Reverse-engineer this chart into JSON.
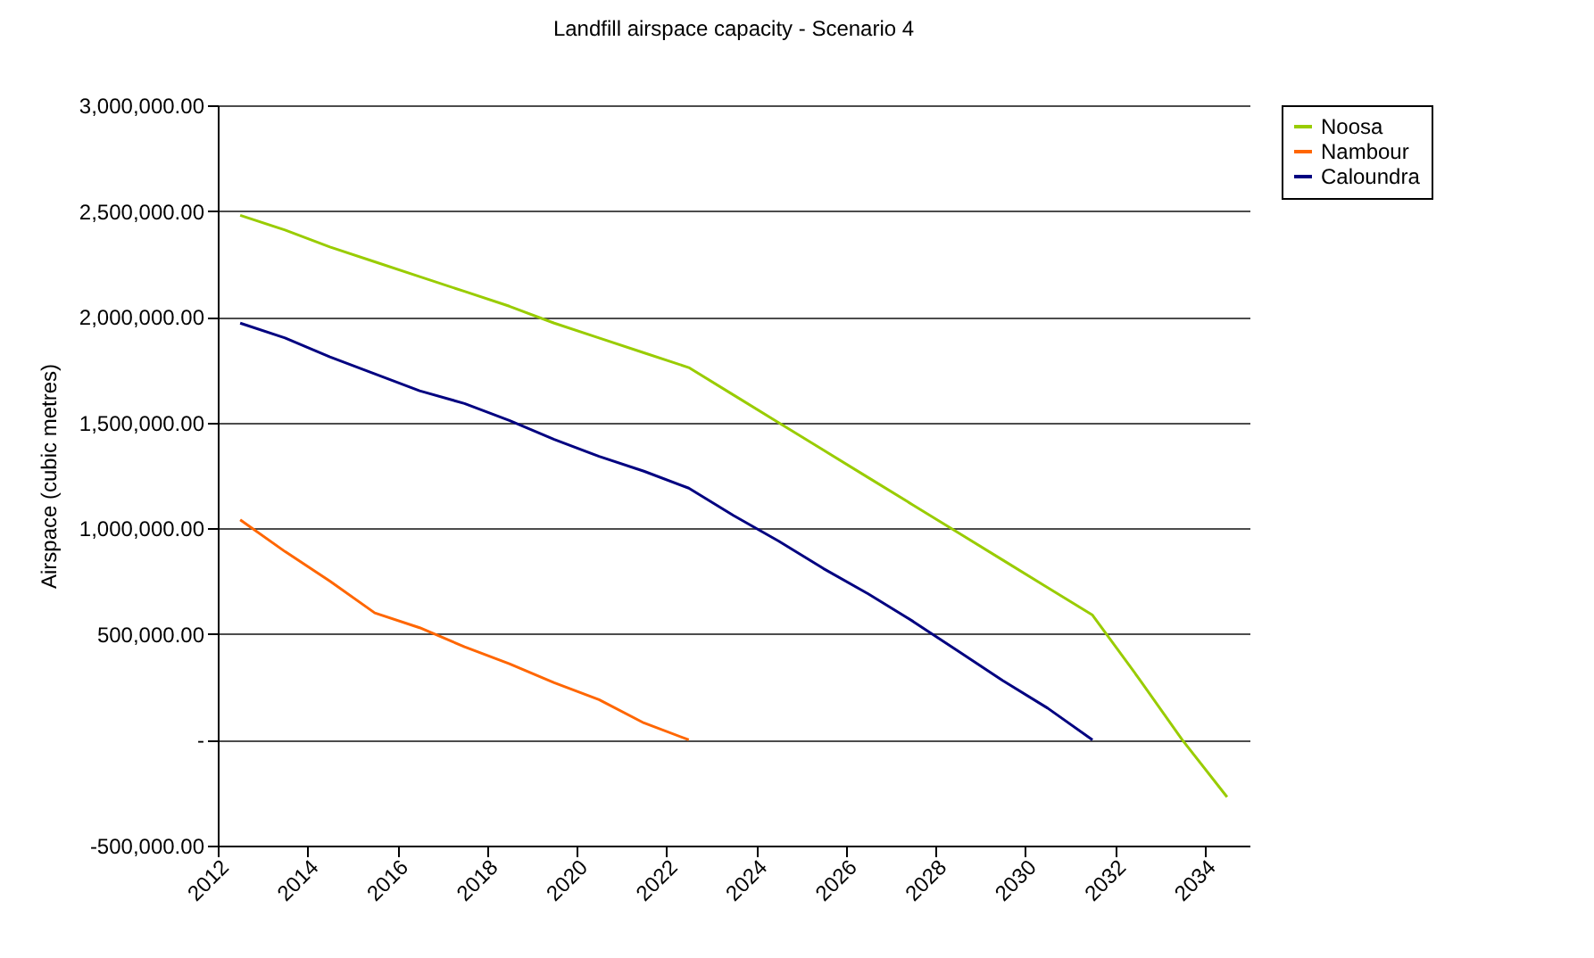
{
  "chart_data": {
    "type": "line",
    "title": "Landfill airspace capacity - Scenario 4",
    "ylabel": "Airspace (cubic metres)",
    "x": [
      2012.5,
      2013.5,
      2014.5,
      2015.5,
      2016.5,
      2017.5,
      2018.5,
      2019.5,
      2020.5,
      2021.5,
      2022.5,
      2023.5,
      2024.5,
      2025.5,
      2026.5,
      2027.5,
      2028.5,
      2029.5,
      2030.5,
      2031.5,
      2032.5,
      2033.5,
      2034.5
    ],
    "series": [
      {
        "name": "Noosa",
        "color": "#99cc00",
        "values": [
          2480000,
          2410000,
          2330000,
          2260000,
          2190000,
          2120000,
          2050000,
          1970000,
          1900000,
          1830000,
          1760000,
          1630000,
          1500000,
          1370000,
          1240000,
          1110000,
          980000,
          850000,
          720000,
          590000,
          300000,
          0,
          -270000
        ]
      },
      {
        "name": "Nambour",
        "color": "#ff6600",
        "values": [
          1040000,
          890000,
          750000,
          600000,
          530000,
          440000,
          360000,
          270000,
          190000,
          80000,
          0,
          null,
          null,
          null,
          null,
          null,
          null,
          null,
          null,
          null,
          null,
          null,
          null
        ]
      },
      {
        "name": "Caloundra",
        "color": "#000080",
        "values": [
          1970000,
          1900000,
          1810000,
          1730000,
          1650000,
          1590000,
          1510000,
          1420000,
          1340000,
          1270000,
          1190000,
          1060000,
          940000,
          810000,
          690000,
          560000,
          420000,
          280000,
          150000,
          0,
          null,
          null,
          null
        ]
      }
    ],
    "xlim": [
      2012,
      2035
    ],
    "xticks": [
      2012,
      2014,
      2016,
      2018,
      2020,
      2022,
      2024,
      2026,
      2028,
      2030,
      2032,
      2034
    ],
    "ylim": [
      -500000,
      3000000
    ],
    "yticks": [
      {
        "value": -500000,
        "label": "-500,000.00"
      },
      {
        "value": 0,
        "label": "-"
      },
      {
        "value": 500000,
        "label": "500,000.00"
      },
      {
        "value": 1000000,
        "label": "1,000,000.00"
      },
      {
        "value": 1500000,
        "label": "1,500,000.00"
      },
      {
        "value": 2000000,
        "label": "2,000,000.00"
      },
      {
        "value": 2500000,
        "label": "2,500,000.00"
      },
      {
        "value": 3000000,
        "label": "3,000,000.00"
      }
    ],
    "grid": "y",
    "legend": "right",
    "marker": "none",
    "line_style": "solid"
  }
}
